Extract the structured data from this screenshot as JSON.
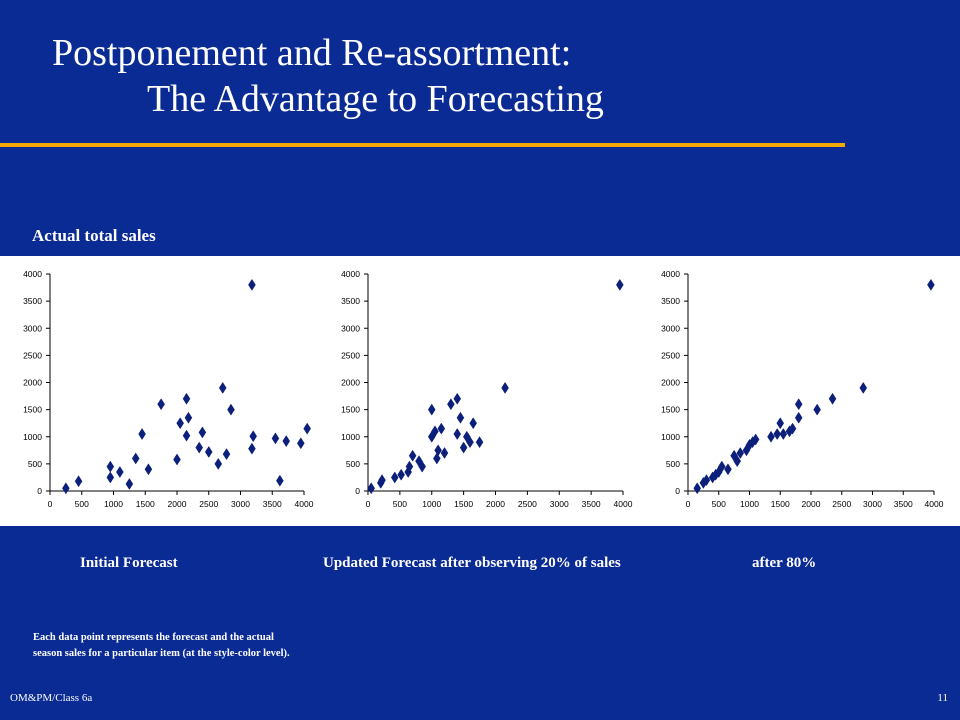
{
  "slide": {
    "title_line1": "Postponement and Re-assortment:",
    "title_line2": "The Advantage to Forecasting",
    "y_label": "Actual total sales",
    "captions": [
      "Initial Forecast",
      "Updated Forecast after observing 20% of sales",
      "after 80%"
    ],
    "note_line1": "Each data point represents the forecast and the actual",
    "note_line2": "season sales for a particular item (at the style-color level).",
    "footer_left": "OM&PM/Class 6a",
    "footer_right": "11"
  },
  "colors": {
    "background": "#0a2a94",
    "rule": "#f2a900",
    "marker": "#0c1f7a",
    "panel": "#ffffff"
  },
  "chart_data": [
    {
      "type": "scatter",
      "title": "",
      "xlabel": "Initial Forecast",
      "ylabel": "Actual total sales",
      "xlim": [
        0,
        4000
      ],
      "ylim": [
        0,
        4000
      ],
      "x_ticks": [
        "0",
        "500",
        "1000",
        "1500",
        "2000",
        "2500",
        "3000",
        "3500",
        "4000"
      ],
      "y_ticks": [
        "0",
        "500",
        "1000",
        "1500",
        "2000",
        "2500",
        "3000",
        "3500",
        "4000"
      ],
      "marker": "diamond",
      "grid": false,
      "points": [
        [
          250,
          50
        ],
        [
          450,
          180
        ],
        [
          950,
          450
        ],
        [
          950,
          250
        ],
        [
          1100,
          350
        ],
        [
          1250,
          130
        ],
        [
          1350,
          600
        ],
        [
          1450,
          1050
        ],
        [
          1550,
          400
        ],
        [
          1750,
          1600
        ],
        [
          2000,
          580
        ],
        [
          2050,
          1250
        ],
        [
          2150,
          1020
        ],
        [
          2150,
          1700
        ],
        [
          2180,
          1350
        ],
        [
          2350,
          800
        ],
        [
          2400,
          1080
        ],
        [
          2500,
          720
        ],
        [
          2650,
          500
        ],
        [
          2720,
          1900
        ],
        [
          2780,
          680
        ],
        [
          2850,
          1500
        ],
        [
          3180,
          3800
        ],
        [
          3180,
          780
        ],
        [
          3200,
          1010
        ],
        [
          3550,
          970
        ],
        [
          3620,
          190
        ],
        [
          3720,
          920
        ],
        [
          3950,
          880
        ],
        [
          4050,
          1150
        ]
      ]
    },
    {
      "type": "scatter",
      "title": "",
      "xlabel": "Updated Forecast after observing 20% of sales",
      "ylabel": "Actual total sales",
      "xlim": [
        0,
        4000
      ],
      "ylim": [
        0,
        4000
      ],
      "x_ticks": [
        "0",
        "500",
        "1000",
        "1500",
        "2000",
        "2500",
        "3000",
        "3500",
        "4000"
      ],
      "y_ticks": [
        "0",
        "500",
        "1000",
        "1500",
        "2000",
        "2500",
        "3000",
        "3500",
        "4000"
      ],
      "marker": "diamond",
      "grid": false,
      "points": [
        [
          50,
          50
        ],
        [
          200,
          150
        ],
        [
          220,
          200
        ],
        [
          420,
          250
        ],
        [
          520,
          300
        ],
        [
          630,
          350
        ],
        [
          650,
          450
        ],
        [
          700,
          650
        ],
        [
          800,
          550
        ],
        [
          850,
          450
        ],
        [
          1000,
          1500
        ],
        [
          1000,
          1000
        ],
        [
          1050,
          1100
        ],
        [
          1080,
          600
        ],
        [
          1100,
          750
        ],
        [
          1150,
          1150
        ],
        [
          1200,
          700
        ],
        [
          1300,
          1600
        ],
        [
          1400,
          1700
        ],
        [
          1400,
          1050
        ],
        [
          1450,
          1350
        ],
        [
          1500,
          800
        ],
        [
          1550,
          1000
        ],
        [
          1600,
          900
        ],
        [
          1650,
          1250
        ],
        [
          1750,
          900
        ],
        [
          2150,
          1900
        ],
        [
          3950,
          3800
        ]
      ]
    },
    {
      "type": "scatter",
      "title": "",
      "xlabel": "after 80%",
      "ylabel": "Actual total sales",
      "xlim": [
        0,
        4000
      ],
      "ylim": [
        0,
        4000
      ],
      "x_ticks": [
        "0",
        "500",
        "1000",
        "1500",
        "2000",
        "2500",
        "3000",
        "3500",
        "4000"
      ],
      "y_ticks": [
        "0",
        "500",
        "1000",
        "1500",
        "2000",
        "2500",
        "3000",
        "3500",
        "4000"
      ],
      "marker": "diamond",
      "grid": false,
      "points": [
        [
          150,
          50
        ],
        [
          250,
          150
        ],
        [
          300,
          200
        ],
        [
          400,
          250
        ],
        [
          450,
          300
        ],
        [
          500,
          350
        ],
        [
          550,
          450
        ],
        [
          650,
          400
        ],
        [
          750,
          650
        ],
        [
          800,
          550
        ],
        [
          850,
          700
        ],
        [
          950,
          750
        ],
        [
          1000,
          850
        ],
        [
          1050,
          900
        ],
        [
          1100,
          950
        ],
        [
          1350,
          1000
        ],
        [
          1450,
          1050
        ],
        [
          1500,
          1250
        ],
        [
          1550,
          1050
        ],
        [
          1650,
          1100
        ],
        [
          1700,
          1150
        ],
        [
          1800,
          1350
        ],
        [
          1800,
          1600
        ],
        [
          2100,
          1500
        ],
        [
          2350,
          1700
        ],
        [
          2850,
          1900
        ],
        [
          3950,
          3800
        ]
      ]
    }
  ]
}
